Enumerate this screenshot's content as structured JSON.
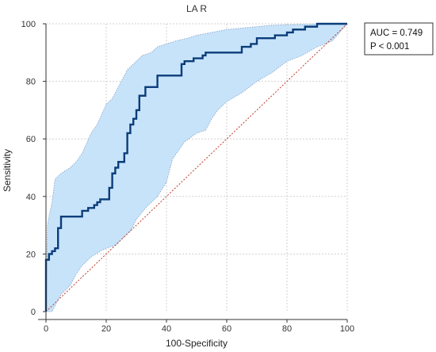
{
  "chart_data": {
    "type": "line",
    "title": "LA R",
    "xlabel": "100-Specificity",
    "ylabel": "Sensitivity",
    "xlim": [
      0,
      100
    ],
    "ylim": [
      0,
      100
    ],
    "x_ticks": [
      0,
      20,
      40,
      60,
      80,
      100
    ],
    "y_ticks": [
      0,
      20,
      40,
      60,
      80,
      100
    ],
    "grid": true,
    "legend_placement": "top-right outside plot",
    "annotations": [
      "AUC = 0.749",
      "P < 0.001"
    ],
    "colors": {
      "roc_line": "#0a3d7a",
      "ci_fill": "#c7e3fa",
      "ci_border": "#7f9fc4",
      "reference_line": "#c0392b",
      "grid": "#d0d0d0"
    },
    "series": [
      {
        "type": "roc",
        "x": [
          0,
          0,
          1,
          1,
          2,
          2,
          3,
          3,
          4,
          4,
          5,
          5,
          12,
          12,
          14,
          14,
          16,
          16,
          17,
          17,
          18,
          18,
          21,
          21,
          22,
          22,
          23,
          23,
          24,
          24,
          26,
          26,
          27,
          27,
          28,
          28,
          29,
          29,
          30,
          30,
          31,
          31,
          33,
          33,
          37,
          37,
          45,
          45,
          46,
          46,
          49,
          49,
          52,
          52,
          53,
          53,
          65,
          65,
          68,
          68,
          70,
          70,
          76,
          76,
          80,
          80,
          82,
          82,
          86,
          86,
          90,
          90,
          100
        ],
        "y": [
          0,
          18,
          18,
          20,
          20,
          21,
          21,
          22,
          22,
          29,
          29,
          33,
          33,
          35,
          35,
          36,
          36,
          37,
          37,
          38,
          38,
          39,
          39,
          43,
          43,
          48,
          48,
          50,
          50,
          52,
          52,
          55,
          55,
          62,
          62,
          65,
          65,
          67,
          67,
          70,
          70,
          75,
          75,
          78,
          78,
          82,
          82,
          86,
          86,
          87,
          87,
          88,
          88,
          89,
          89,
          90,
          90,
          92,
          92,
          93,
          93,
          95,
          95,
          96,
          96,
          97,
          97,
          98,
          98,
          99,
          99,
          100,
          100
        ]
      },
      {
        "type": "ci_upper",
        "x": [
          0,
          0.5,
          1,
          2,
          3,
          5,
          8,
          10,
          12,
          15,
          17,
          20,
          22,
          23,
          25,
          27,
          30,
          32,
          35,
          37,
          40,
          43,
          47,
          50,
          55,
          60,
          65,
          70,
          75,
          80,
          85,
          90,
          95,
          100
        ],
        "y": [
          0,
          30,
          33,
          38,
          46,
          48,
          50,
          52,
          55,
          62,
          65,
          72,
          74,
          76,
          80,
          84,
          87,
          89,
          90,
          92,
          93,
          94,
          95,
          96,
          97,
          98,
          98.5,
          99,
          99.5,
          99.7,
          99.8,
          99.9,
          100,
          100
        ]
      },
      {
        "type": "ci_lower",
        "x": [
          0,
          1,
          2,
          3,
          5,
          8,
          10,
          12,
          15,
          18,
          20,
          23,
          25,
          28,
          30,
          33,
          37,
          40,
          42,
          44,
          46,
          50,
          53,
          55,
          57,
          60,
          65,
          70,
          75,
          80,
          85,
          90,
          95,
          100
        ],
        "y": [
          0,
          0,
          0,
          2,
          6,
          9,
          13,
          16,
          19,
          21,
          22,
          23,
          25,
          28,
          32,
          36,
          40,
          45,
          53,
          56,
          59,
          62,
          63,
          67,
          70,
          73,
          76,
          80,
          83,
          87,
          89,
          92,
          94,
          100
        ]
      },
      {
        "type": "reference",
        "x": [
          0,
          100
        ],
        "y": [
          0,
          100
        ]
      }
    ]
  }
}
